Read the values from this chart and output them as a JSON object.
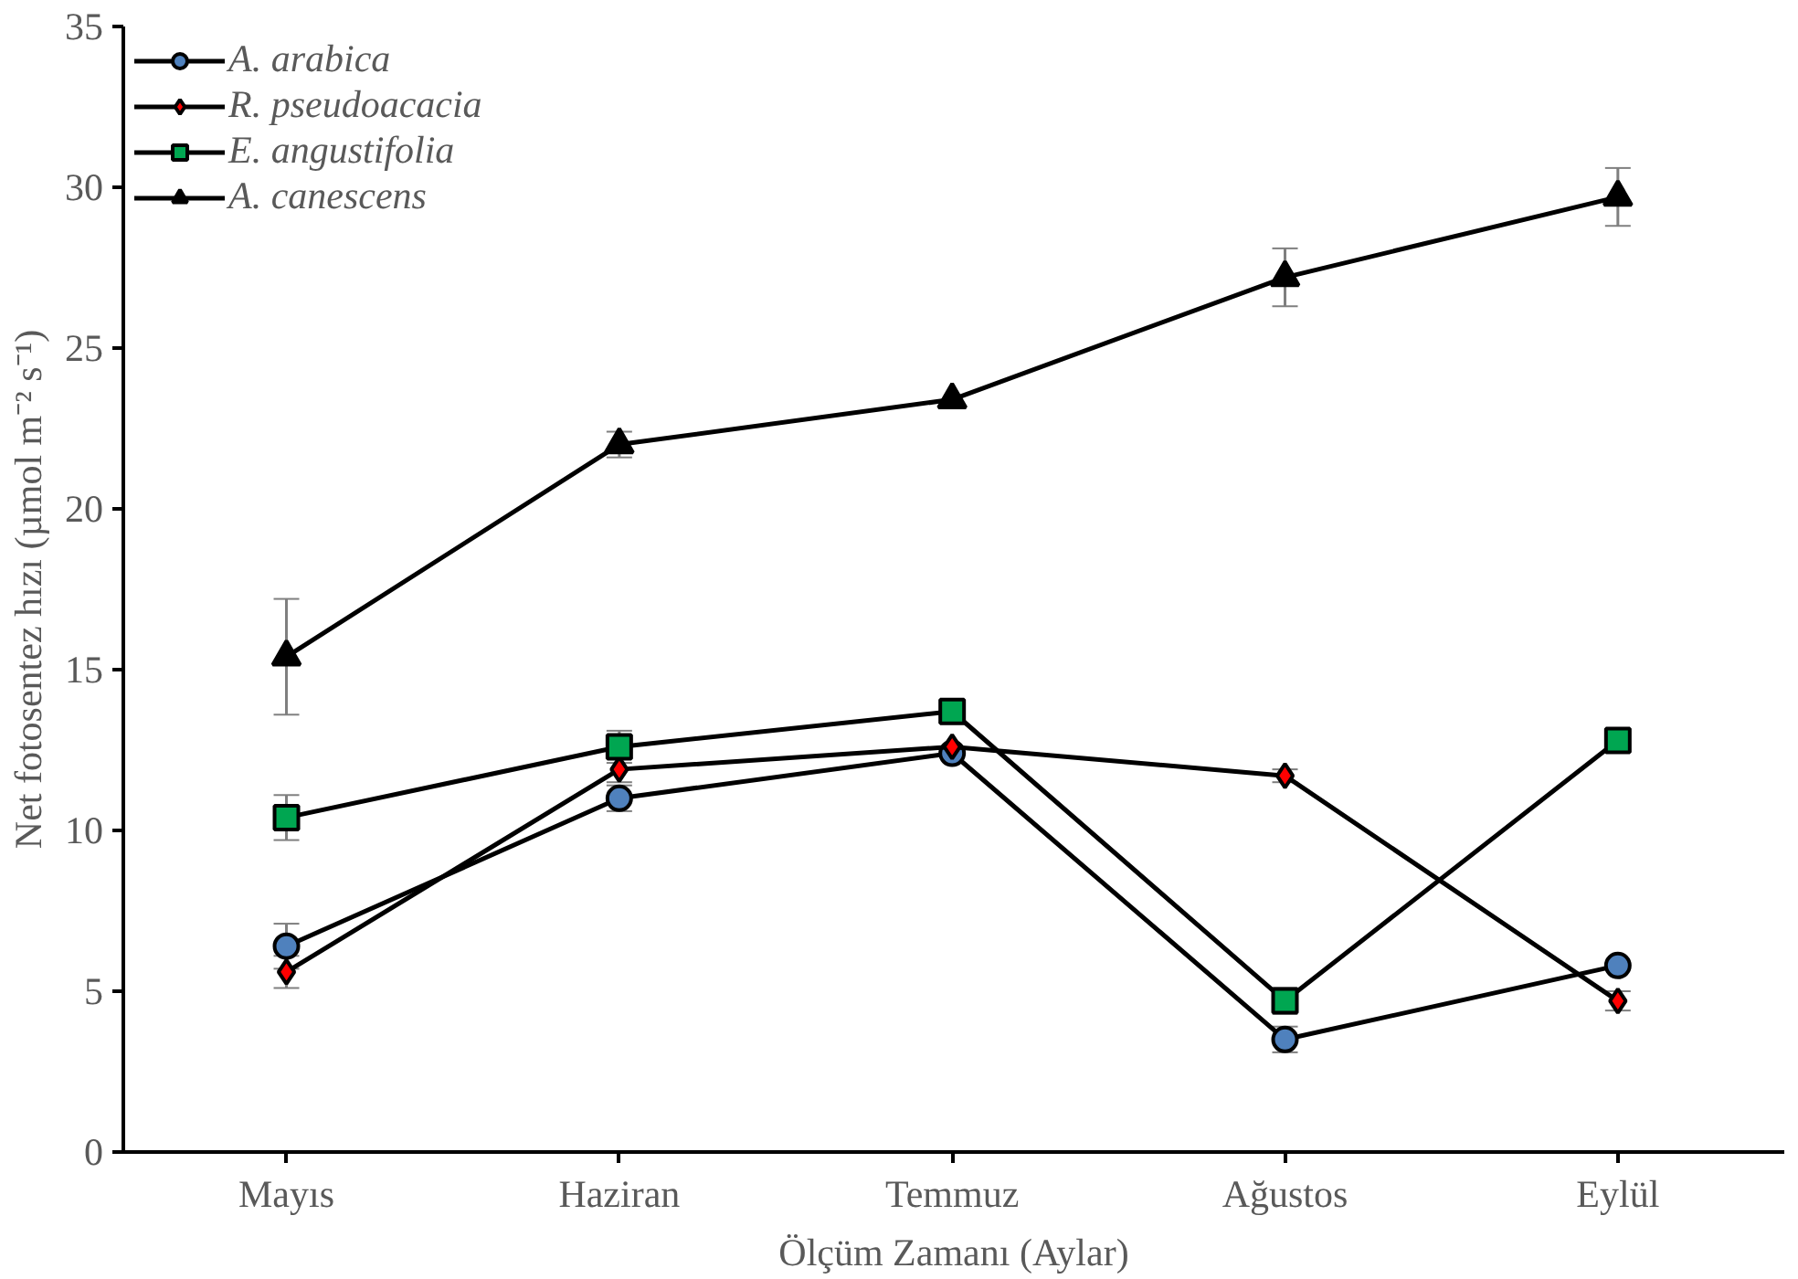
{
  "chart_data": {
    "type": "line",
    "xlabel": "Ölçüm Zamanı (Aylar)",
    "ylabel": "Net fotosentez hızı (µmol m⁻² s⁻¹)",
    "categories": [
      "Mayıs",
      "Haziran",
      "Temmuz",
      "Ağustos",
      "Eylül"
    ],
    "ylim": [
      0,
      35
    ],
    "yticks": [
      0,
      5,
      10,
      15,
      20,
      25,
      30,
      35
    ],
    "grid": false,
    "legend": "top left",
    "line_style": "solid",
    "series": [
      {
        "name": "A. arabica",
        "color": "#4f81bd",
        "marker": "circle",
        "values": [
          6.4,
          11.0,
          12.4,
          3.5,
          5.8
        ],
        "errors": [
          0.7,
          0.4,
          null,
          0.4,
          null
        ]
      },
      {
        "name": "R. pseudoacacia",
        "color": "#ff0000",
        "marker": "diamond",
        "values": [
          5.6,
          11.9,
          12.6,
          11.7,
          4.7
        ],
        "errors": [
          0.5,
          0.4,
          null,
          0.2,
          0.3
        ]
      },
      {
        "name": "E. angustifolia",
        "color": "#00a651",
        "marker": "square",
        "values": [
          10.4,
          12.6,
          13.7,
          4.7,
          12.8
        ],
        "errors": [
          0.7,
          0.5,
          null,
          0.4,
          null
        ]
      },
      {
        "name": "A. canescens",
        "color": "#000000",
        "marker": "triangle",
        "values": [
          15.4,
          22.0,
          23.4,
          27.2,
          29.7
        ],
        "errors": [
          1.8,
          0.4,
          null,
          0.9,
          0.9
        ]
      }
    ]
  }
}
